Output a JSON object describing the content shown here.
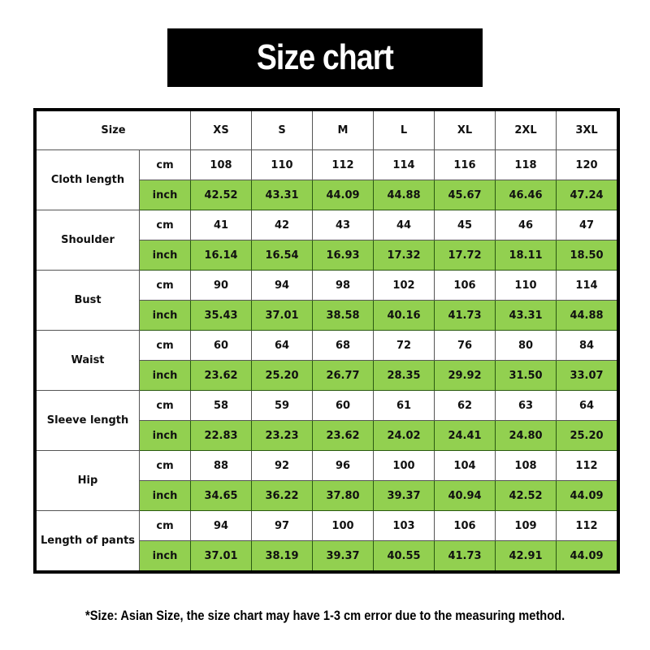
{
  "title": "Size chart",
  "accent_color": "#92d050",
  "header": {
    "label": "Size",
    "sizes": [
      "XS",
      "S",
      "M",
      "L",
      "XL",
      "2XL",
      "3XL"
    ]
  },
  "units": {
    "cm": "cm",
    "inch": "inch"
  },
  "rows": [
    {
      "name": "Cloth length",
      "cm": [
        "108",
        "110",
        "112",
        "114",
        "116",
        "118",
        "120"
      ],
      "inch": [
        "42.52",
        "43.31",
        "44.09",
        "44.88",
        "45.67",
        "46.46",
        "47.24"
      ]
    },
    {
      "name": "Shoulder",
      "cm": [
        "41",
        "42",
        "43",
        "44",
        "45",
        "46",
        "47"
      ],
      "inch": [
        "16.14",
        "16.54",
        "16.93",
        "17.32",
        "17.72",
        "18.11",
        "18.50"
      ]
    },
    {
      "name": "Bust",
      "cm": [
        "90",
        "94",
        "98",
        "102",
        "106",
        "110",
        "114"
      ],
      "inch": [
        "35.43",
        "37.01",
        "38.58",
        "40.16",
        "41.73",
        "43.31",
        "44.88"
      ]
    },
    {
      "name": "Waist",
      "cm": [
        "60",
        "64",
        "68",
        "72",
        "76",
        "80",
        "84"
      ],
      "inch": [
        "23.62",
        "25.20",
        "26.77",
        "28.35",
        "29.92",
        "31.50",
        "33.07"
      ]
    },
    {
      "name": "Sleeve length",
      "cm": [
        "58",
        "59",
        "60",
        "61",
        "62",
        "63",
        "64"
      ],
      "inch": [
        "22.83",
        "23.23",
        "23.62",
        "24.02",
        "24.41",
        "24.80",
        "25.20"
      ]
    },
    {
      "name": "Hip",
      "cm": [
        "88",
        "92",
        "96",
        "100",
        "104",
        "108",
        "112"
      ],
      "inch": [
        "34.65",
        "36.22",
        "37.80",
        "39.37",
        "40.94",
        "42.52",
        "44.09"
      ]
    },
    {
      "name": "Length of pants",
      "cm": [
        "94",
        "97",
        "100",
        "103",
        "106",
        "109",
        "112"
      ],
      "inch": [
        "37.01",
        "38.19",
        "39.37",
        "40.55",
        "41.73",
        "42.91",
        "44.09"
      ]
    }
  ],
  "footnote": "*Size: Asian Size, the size chart may have 1-3 cm error due to the measuring method."
}
